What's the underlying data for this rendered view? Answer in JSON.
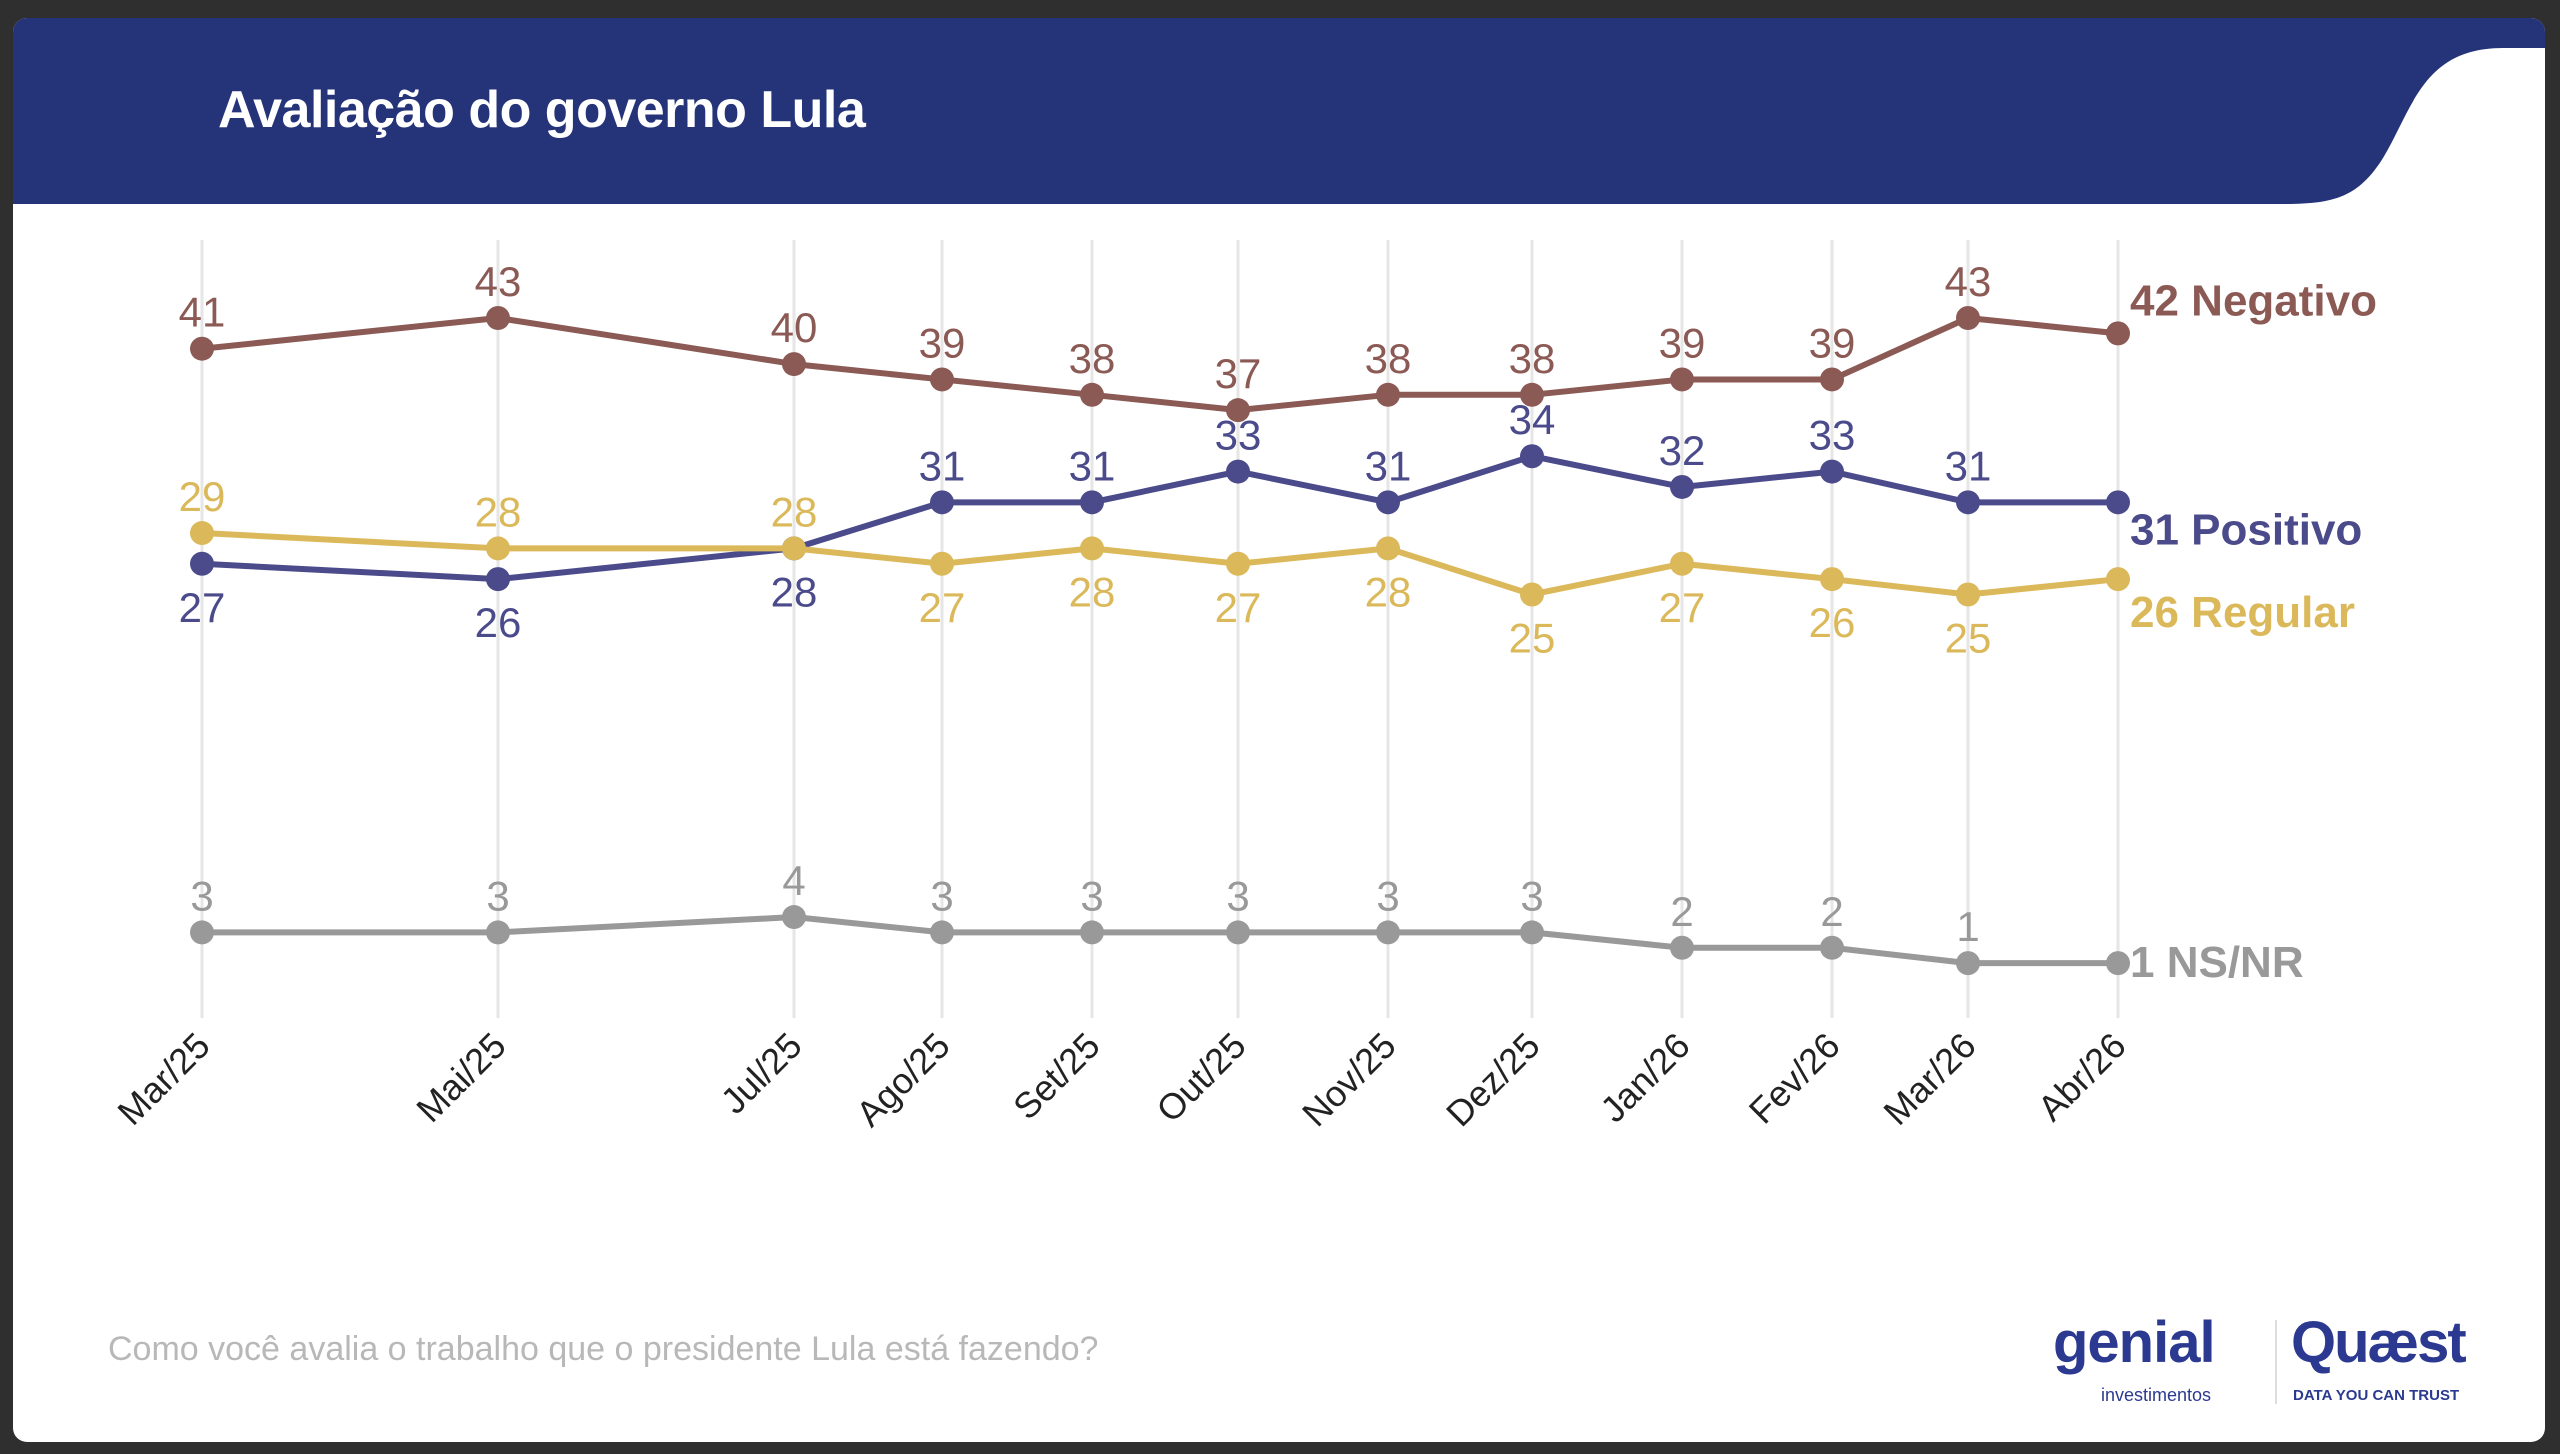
{
  "header": {
    "title": "Avaliação do governo Lula",
    "color": "#253479"
  },
  "footer": {
    "question": "Como você avalia o trabalho que o presidente Lula está fazendo?",
    "logo_genial": "genial",
    "logo_genial_sub": "investimentos",
    "logo_quaest": "Quæst",
    "logo_quaest_sub": "DATA YOU CAN TRUST"
  },
  "chart_data": {
    "type": "line",
    "title": "Avaliação do governo Lula",
    "categories": [
      "Mar/25",
      "Mai/25",
      "Jul/25",
      "Ago/25",
      "Set/25",
      "Out/25",
      "Nov/25",
      "Dez/25",
      "Jan/26",
      "Fev/26",
      "Mar/26",
      "Abr/26"
    ],
    "grid": "vertical",
    "legend": "right (end labels)",
    "series": [
      {
        "name": "Negativo",
        "end_label": "42 Negativo",
        "color": "#8b5a55",
        "values": [
          41,
          43,
          40,
          39,
          38,
          37,
          38,
          38,
          39,
          39,
          43,
          42
        ]
      },
      {
        "name": "Positivo",
        "end_label": "31 Positivo",
        "color": "#4b4b8c",
        "values": [
          27,
          26,
          28,
          31,
          31,
          33,
          31,
          34,
          32,
          33,
          31,
          31
        ]
      },
      {
        "name": "Regular",
        "end_label": "26 Regular",
        "color": "#dbb95b",
        "values": [
          29,
          28,
          28,
          27,
          28,
          27,
          28,
          25,
          27,
          26,
          25,
          26
        ]
      },
      {
        "name": "NS/NR",
        "end_label": "1 NS/NR",
        "color": "#999999",
        "values": [
          3,
          3,
          4,
          3,
          3,
          3,
          3,
          3,
          2,
          2,
          1,
          1
        ]
      }
    ]
  }
}
